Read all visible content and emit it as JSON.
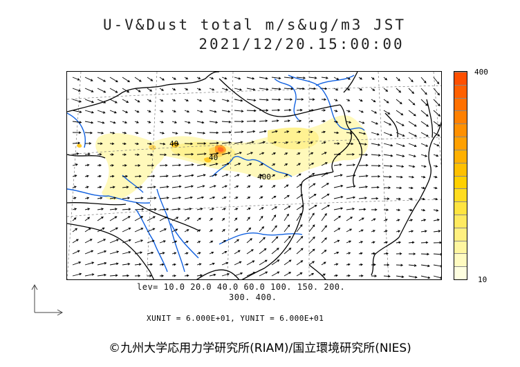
{
  "header": {
    "title_line1": "U-V&Dust total m/s&ug/m3 JST",
    "title_line2": "2021/12/20.15:00:00"
  },
  "colorbar": {
    "max_label": "400",
    "min_label": "10",
    "colors": [
      "#ffffe0",
      "#fffbc0",
      "#fff6a0",
      "#fff080",
      "#ffea60",
      "#ffe440",
      "#ffdc20",
      "#ffd000",
      "#ffc000",
      "#ffb000",
      "#ffa000",
      "#ff9000",
      "#ff8000",
      "#ff7000",
      "#ff6000",
      "#ff5000"
    ]
  },
  "legend": {
    "lev_line1": "lev= 10.0 20.0 40.0 60.0 100. 150. 200.",
    "lev_line2": "300. 400.",
    "units": "XUNIT = 6.000E+01, YUNIT = 6.000E+01"
  },
  "map": {
    "contour_labels": [
      "40",
      "40",
      "400"
    ],
    "colors": {
      "coast": "#000000",
      "rivers": "#1060e0",
      "grid": "#777777",
      "arrows": "#000000"
    }
  },
  "footer": {
    "credit": "©九州大学応用力学研究所(RIAM)/国立環境研究所(NIES)"
  }
}
